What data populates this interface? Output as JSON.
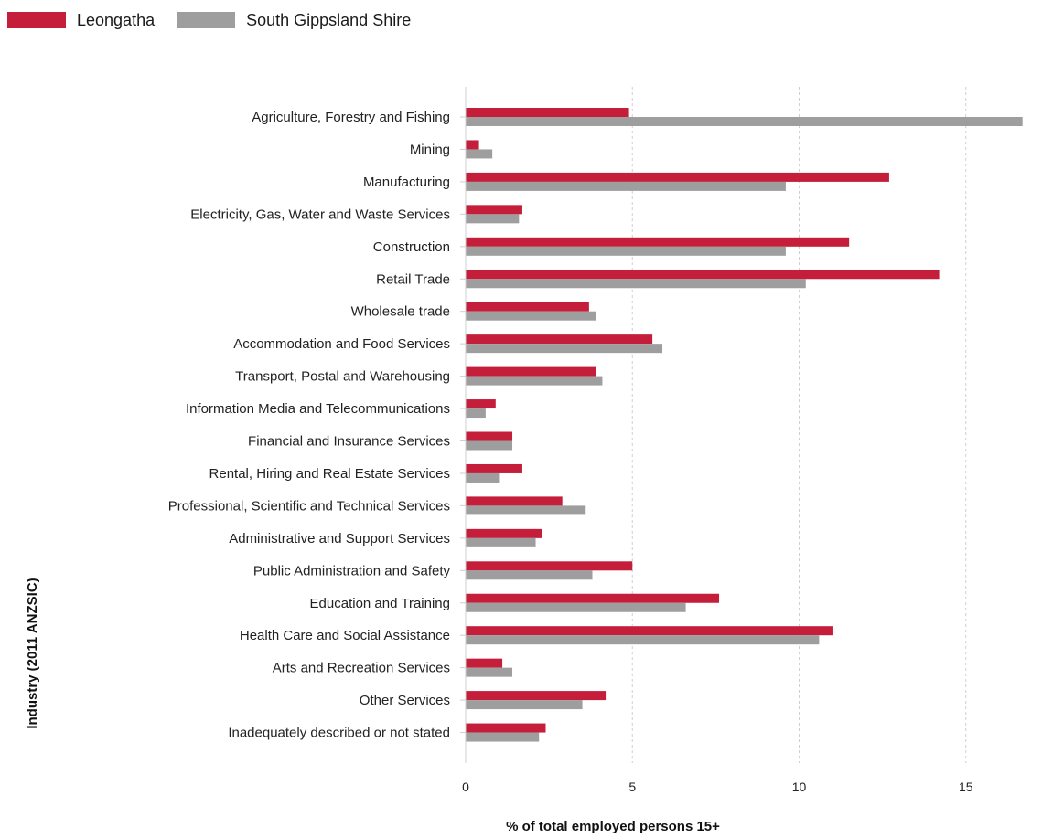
{
  "chart_data": {
    "type": "bar",
    "orientation": "horizontal",
    "title": "",
    "xlabel": "% of total employed persons 15+",
    "ylabel": "Industry (2011 ANZSIC)",
    "xlim": [
      0,
      17
    ],
    "xticks": [
      0,
      5,
      10,
      15
    ],
    "grid": "vertical dashed",
    "legend_position": "top-left",
    "categories": [
      "Agriculture, Forestry and Fishing",
      "Mining",
      "Manufacturing",
      "Electricity, Gas, Water and Waste Services",
      "Construction",
      "Retail Trade",
      "Wholesale trade",
      "Accommodation and Food Services",
      "Transport, Postal and Warehousing",
      "Information Media and Telecommunications",
      "Financial and Insurance Services",
      "Rental, Hiring and Real Estate Services",
      "Professional, Scientific and Technical Services",
      "Administrative and Support Services",
      "Public Administration and Safety",
      "Education and Training",
      "Health Care and Social Assistance",
      "Arts and Recreation Services",
      "Other Services",
      "Inadequately described or not stated"
    ],
    "series": [
      {
        "name": "Leongatha",
        "color": "#c41e3a",
        "values": [
          4.9,
          0.4,
          12.7,
          1.7,
          11.5,
          14.2,
          3.7,
          5.6,
          3.9,
          0.9,
          1.4,
          1.7,
          2.9,
          2.3,
          5.0,
          7.6,
          11.0,
          1.1,
          4.2,
          2.4
        ]
      },
      {
        "name": "South Gippsland Shire",
        "color": "#9e9e9e",
        "values": [
          16.7,
          0.8,
          9.6,
          1.6,
          9.6,
          10.2,
          3.9,
          5.9,
          4.1,
          0.6,
          1.4,
          1.0,
          3.6,
          2.1,
          3.8,
          6.6,
          10.6,
          1.4,
          3.5,
          2.2
        ]
      }
    ]
  }
}
